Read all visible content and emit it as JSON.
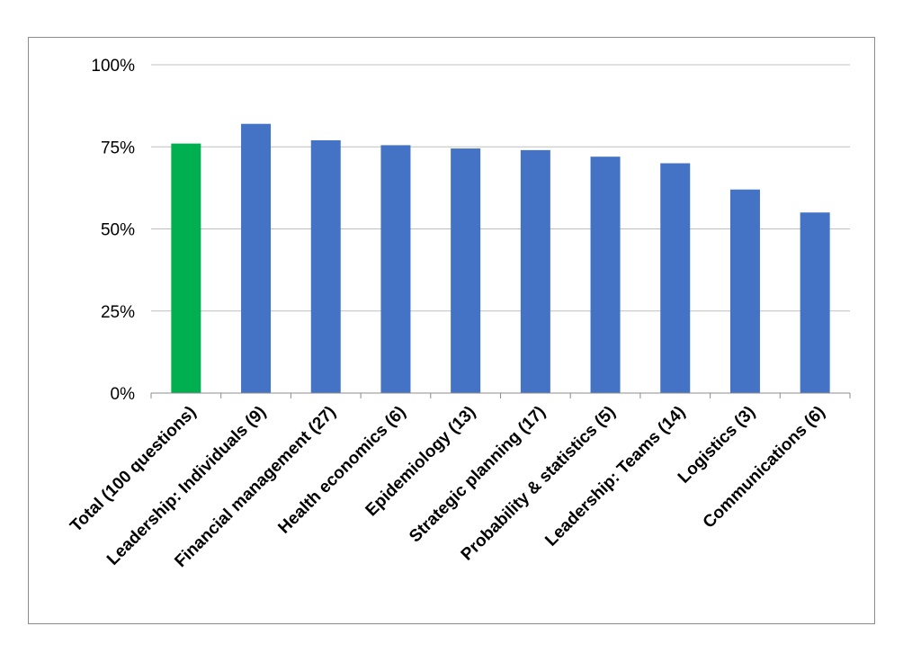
{
  "chart_data": {
    "type": "bar",
    "title": "",
    "xlabel": "",
    "ylabel": "",
    "ylim": [
      0,
      100
    ],
    "y_ticks": [
      "0%",
      "25%",
      "50%",
      "75%",
      "100%"
    ],
    "grid": true,
    "legend": "none",
    "categories": [
      "Total (100 questions)",
      "Leadership: Individuals (9)",
      "Financial management (27)",
      "Health economics (6)",
      "Epidemiology (13)",
      "Strategic planning (17)",
      "Probability & statistics (5)",
      "Leadership: Teams (14)",
      "Logistics (3)",
      "Communications (6)"
    ],
    "values": [
      76,
      82,
      77,
      75.5,
      74.5,
      74,
      72,
      70,
      62,
      55
    ],
    "colors": {
      "highlight": "#00b050",
      "bar": "#4472c4",
      "grid": "#bfbfbf",
      "axis": "#8c8c8c"
    }
  }
}
